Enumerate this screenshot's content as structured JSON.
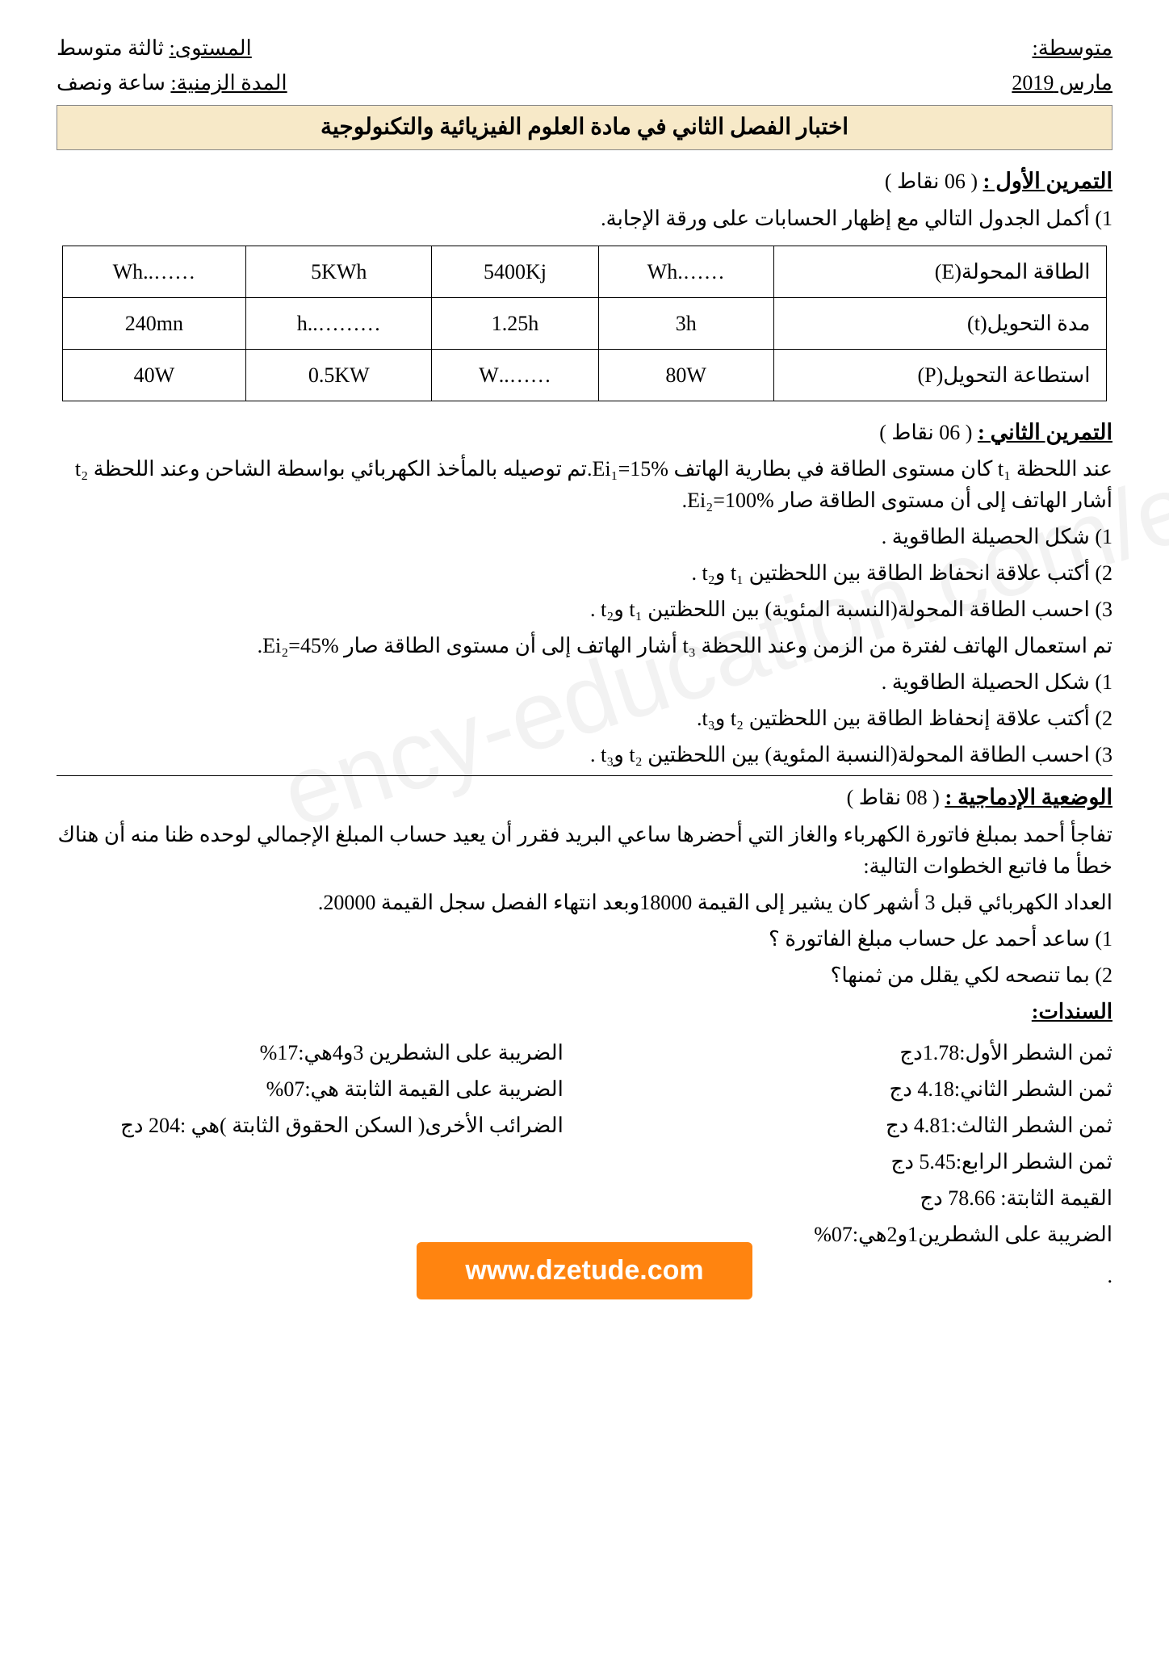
{
  "header": {
    "right_top_label": "متوسطة:",
    "right_bottom": "مارس  2019",
    "left_top_label": "المستوى:",
    "left_top_value": "ثالثة متوسط",
    "left_bottom_label": "المدة الزمنية:",
    "left_bottom_value": "ساعة ونصف"
  },
  "title": "اختبار الفصل الثاني في مادة العلوم الفيزيائية والتكنولوجية",
  "ex1": {
    "title": "التمرين الأول :",
    "points": "( 06 نقاط )",
    "q1": "1) أكمل الجدول التالي مع إظهار الحسابات على ورقة الإجابة.",
    "table": {
      "row1_label": "الطاقة المحولة(E)",
      "row1": [
        "…….Wh",
        "5400Kj",
        "5KWh",
        "……..Wh"
      ],
      "row2_label": "مدة التحويل(t)",
      "row2": [
        "3h",
        "1.25h",
        "………..h",
        "240mn"
      ],
      "row3_label": "استطاعة التحويل(P)",
      "row3": [
        "80W",
        "……..W",
        "0.5KW",
        "40W"
      ]
    }
  },
  "ex2": {
    "title": "التمرين الثاني :",
    "points": "( 06 نقاط )",
    "p1": "عند اللحظة t₁ كان مستوى الطاقة في بطارية الهاتف %15=Ei₁.تم توصيله بالمأخذ الكهربائي بواسطة الشاحن وعند اللحظة t₂ أشار الهاتف إلى أن مستوى الطاقة صار %100=Ei₂.",
    "l1": "1) شكل الحصيلة الطاقوية .",
    "l2": "2) أكتب علاقة انحفاظ الطاقة بين اللحظتين t₁ وt₂ .",
    "l3": "3) احسب الطاقة المحولة(النسبة المئوية) بين اللحظتين t₁ وt₂ .",
    "p2": "تم استعمال الهاتف لفترة من الزمن وعند اللحظة t₃ أشار الهاتف إلى أن مستوى الطاقة صار %45=Ei₂.",
    "l4": "1) شكل الحصيلة الطاقوية .",
    "l5": "2) أكتب علاقة إنحفاظ الطاقة بين اللحظتين t₂ وt₃.",
    "l6": "3) احسب الطاقة المحولة(النسبة المئوية) بين اللحظتين t₂ وt₃ ."
  },
  "situation": {
    "title": "الوضعية الإدماجية :",
    "points": "( 08 نقاط )",
    "intro": "تفاجأ أحمد بمبلغ فاتورة الكهرباء والغاز التي أحضرها ساعي البريد فقرر أن يعيد حساب المبلغ الإجمالي لوحده ظنا منه أن هناك خطأ ما  فاتبع الخطوات التالية:",
    "line_meter": "العداد الكهربائي قبل 3 أشهر كان يشير إلى القيمة 18000وبعد انتهاء الفصل سجل القيمة 20000.",
    "q1": "1) ساعد أحمد عل حساب مبلغ الفاتورة ؟",
    "q2": "2) بما تنصحه لكي يقلل من ثمنها؟",
    "sanads_title": "السندات:",
    "col_right": [
      "ثمن الشطر الأول:1.78دج",
      "ثمن الشطر الثاني:4.18  دج",
      "ثمن الشطر الثالث:4.81 دج",
      "ثمن الشطر الرابع:5.45 دج",
      "القيمة الثابتة: 78.66 دج",
      "الضريبة على الشطرين1و2هي:07%"
    ],
    "col_left": [
      "الضريبة على الشطرين 3و4هي:17%",
      "الضريبة على القيمة الثابتة هي:07%",
      "الضرائب الأخرى( السكن الحقوق الثابتة )هي :204 دج"
    ]
  },
  "footer": "www.dzetude.com",
  "watermark": "ency-education.com/exams"
}
